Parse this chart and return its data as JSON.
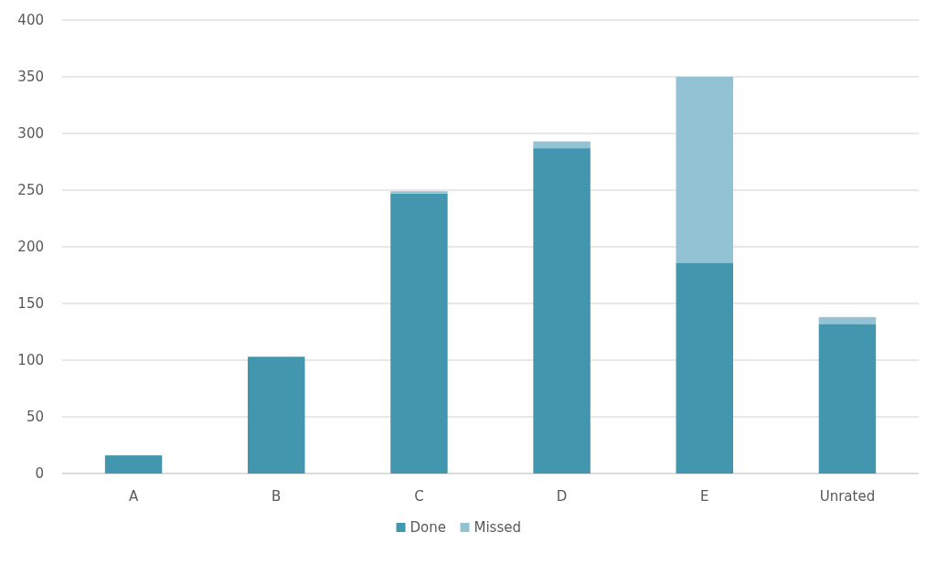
{
  "chart_data": {
    "type": "bar",
    "stacked": true,
    "categories": [
      "A",
      "B",
      "C",
      "D",
      "E",
      "Unrated"
    ],
    "series": [
      {
        "name": "Done",
        "color": "#4297ae",
        "values": [
          16,
          103,
          247,
          287,
          186,
          132
        ]
      },
      {
        "name": "Missed",
        "color": "#93c2d4",
        "values": [
          0,
          0,
          2,
          6,
          164,
          6
        ]
      }
    ],
    "ylim": [
      0,
      400
    ],
    "yticks": [
      0,
      50,
      100,
      150,
      200,
      250,
      300,
      350,
      400
    ],
    "grid": "y",
    "legend": "bottom"
  }
}
